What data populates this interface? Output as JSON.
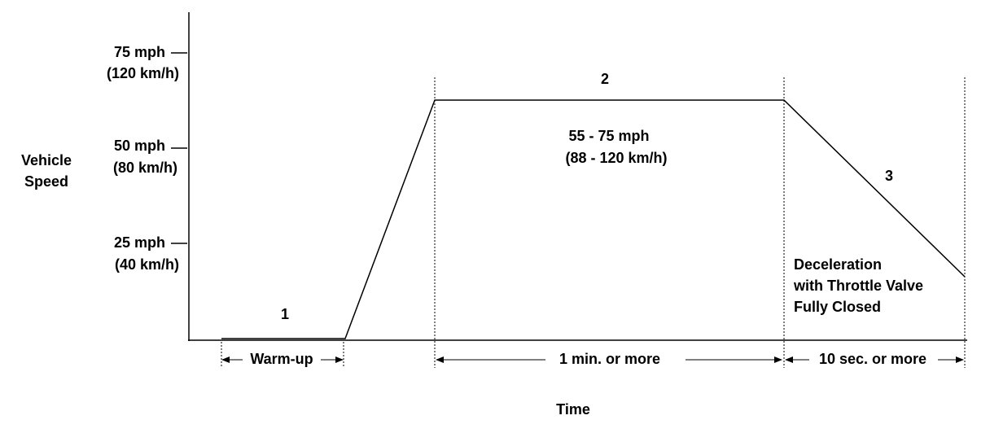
{
  "axis": {
    "y_label": [
      "Vehicle",
      "Speed"
    ],
    "x_label": "Time",
    "ticks": [
      {
        "mph": "75 mph",
        "kmh": "(120 km/h)"
      },
      {
        "mph": "50 mph",
        "kmh": "(80 km/h)"
      },
      {
        "mph": "25 mph",
        "kmh": "(40 km/h)"
      }
    ]
  },
  "phases": [
    {
      "number": "1",
      "interval": "Warm-up"
    },
    {
      "number": "2",
      "interval": "1 min. or more",
      "note": [
        "55 - 75 mph",
        "(88 - 120 km/h)"
      ]
    },
    {
      "number": "3",
      "interval": "10 sec. or more",
      "note": [
        "Deceleration",
        "with Throttle Valve",
        "Fully Closed"
      ]
    }
  ]
}
